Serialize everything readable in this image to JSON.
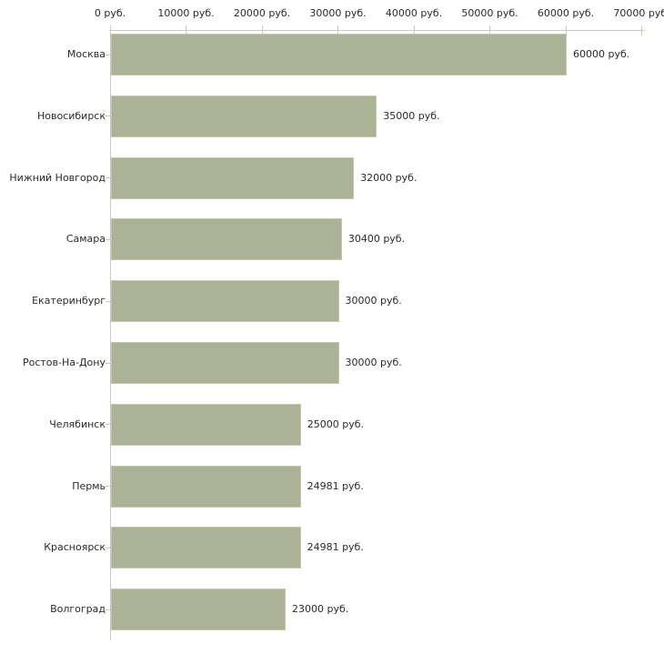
{
  "chart_data": {
    "type": "bar",
    "orientation": "horizontal",
    "title": "",
    "xlabel": "",
    "ylabel": "",
    "unit": "руб.",
    "axis_position": "top",
    "grid": false,
    "legend": false,
    "categories": [
      "Москва",
      "Новосибирск",
      "Нижний Новгород",
      "Самара",
      "Екатеринбург",
      "Ростов-На-Дону",
      "Челябинск",
      "Пермь",
      "Красноярск",
      "Волгоград"
    ],
    "values": [
      60000,
      35000,
      32000,
      30400,
      30000,
      30000,
      25000,
      24981,
      24981,
      23000
    ],
    "value_labels": [
      "60000 руб.",
      "35000 руб.",
      "32000 руб.",
      "30400 руб.",
      "30000 руб.",
      "30000 руб.",
      "25000 руб.",
      "24981 руб.",
      "24981 руб.",
      "23000 руб."
    ],
    "xlim": [
      0,
      70000
    ],
    "x_ticks": [
      0,
      10000,
      20000,
      30000,
      40000,
      50000,
      60000,
      70000
    ],
    "x_tick_labels": [
      "0 руб.",
      "10000 руб.",
      "20000 руб.",
      "30000 руб.",
      "40000 руб.",
      "50000 руб.",
      "60000 руб.",
      "70000 руб."
    ]
  },
  "style": {
    "bar_color": "#abb296",
    "bar_border_color": "#c3c8ad",
    "axis_line_color": "#c8c8c8",
    "tick_color": "#cbcea0",
    "text_color": "#2a2a2a",
    "background_color": "#ffffff"
  }
}
